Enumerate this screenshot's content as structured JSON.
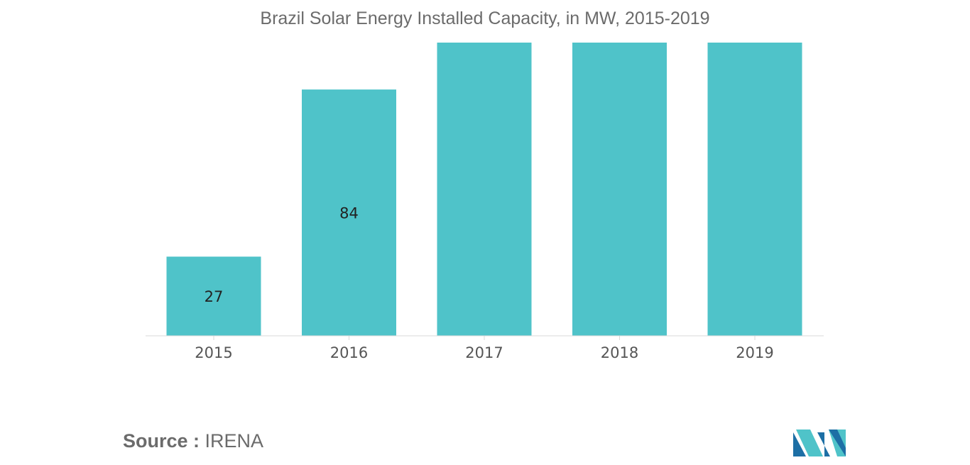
{
  "chart_data": {
    "type": "bar",
    "title": "Brazil Solar Energy Installed Capacity, in MW, 2015-2019",
    "categories": [
      "2015",
      "2016",
      "2017",
      "2018",
      "2019"
    ],
    "values": [
      27,
      84,
      100,
      100,
      100
    ],
    "data_labels": [
      "27",
      "84",
      "",
      "",
      ""
    ],
    "ylim": [
      0,
      100
    ],
    "xlabel": "",
    "ylabel": "",
    "grid": false,
    "bar_color": "#4fc3c9"
  },
  "source": {
    "label": "Source :",
    "value": "IRENA"
  },
  "colors": {
    "bar": "#4fc3c9",
    "text": "#6b6b6b",
    "logo_dark": "#1d6fa5",
    "logo_light": "#4fc3c9"
  }
}
